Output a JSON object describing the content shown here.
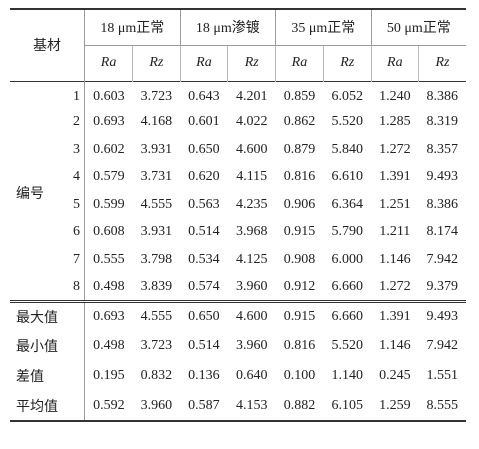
{
  "table": {
    "corner": "基材",
    "groups": [
      "18 μm正常",
      "18 μm渗镀",
      "35 μm正常",
      "50 μm正常"
    ],
    "subheaders": [
      "Ra",
      "Rz",
      "Ra",
      "Rz",
      "Ra",
      "Rz",
      "Ra",
      "Rz"
    ],
    "row_group_label": "编号",
    "rows": [
      {
        "label": "1",
        "values": [
          "0.603",
          "3.723",
          "0.643",
          "4.201",
          "0.859",
          "6.052",
          "1.240",
          "8.386"
        ]
      },
      {
        "label": "2",
        "values": [
          "0.693",
          "4.168",
          "0.601",
          "4.022",
          "0.862",
          "5.520",
          "1.285",
          "8.319"
        ]
      },
      {
        "label": "3",
        "values": [
          "0.602",
          "3.931",
          "0.650",
          "4.600",
          "0.879",
          "5.840",
          "1.272",
          "8.357"
        ]
      },
      {
        "label": "4",
        "values": [
          "0.579",
          "3.731",
          "0.620",
          "4.115",
          "0.816",
          "6.610",
          "1.391",
          "9.493"
        ]
      },
      {
        "label": "5",
        "values": [
          "0.599",
          "4.555",
          "0.563",
          "4.235",
          "0.906",
          "6.364",
          "1.251",
          "8.386"
        ]
      },
      {
        "label": "6",
        "values": [
          "0.608",
          "3.931",
          "0.514",
          "3.968",
          "0.915",
          "5.790",
          "1.211",
          "8.174"
        ]
      },
      {
        "label": "7",
        "values": [
          "0.555",
          "3.798",
          "0.534",
          "4.125",
          "0.908",
          "6.000",
          "1.146",
          "7.942"
        ]
      },
      {
        "label": "8",
        "values": [
          "0.498",
          "3.839",
          "0.574",
          "3.960",
          "0.912",
          "6.660",
          "1.272",
          "9.379"
        ]
      }
    ],
    "summary": [
      {
        "label": "最大值",
        "values": [
          "0.693",
          "4.555",
          "0.650",
          "4.600",
          "0.915",
          "6.660",
          "1.391",
          "9.493"
        ]
      },
      {
        "label": "最小值",
        "values": [
          "0.498",
          "3.723",
          "0.514",
          "3.960",
          "0.816",
          "5.520",
          "1.146",
          "7.942"
        ]
      },
      {
        "label": "差值",
        "values": [
          "0.195",
          "0.832",
          "0.136",
          "0.640",
          "0.100",
          "1.140",
          "0.245",
          "1.551"
        ]
      },
      {
        "label": "平均值",
        "values": [
          "0.592",
          "3.960",
          "0.587",
          "4.153",
          "0.882",
          "6.105",
          "1.259",
          "8.555"
        ]
      }
    ]
  }
}
